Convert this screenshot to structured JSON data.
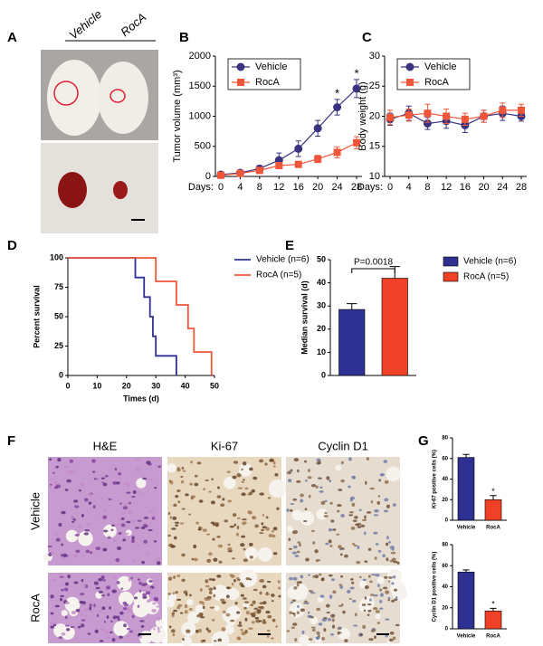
{
  "panel_labels": [
    "A",
    "B",
    "C",
    "D",
    "E",
    "F",
    "G"
  ],
  "panel_a": {
    "groups": [
      "Vehicle",
      "RocA"
    ]
  },
  "panel_f": {
    "columns": [
      "H&E",
      "Ki-67",
      "Cyclin D1"
    ],
    "rows": [
      "Vehicle",
      "RocA"
    ]
  },
  "chart_data": [
    {
      "type": "line",
      "ylabel": "Tumor volume (mm³)",
      "xlabel": "Days:",
      "x": [
        0,
        4,
        8,
        12,
        16,
        20,
        24,
        28
      ],
      "xlim": [
        0,
        28
      ],
      "xticks": [
        0,
        4,
        8,
        12,
        16,
        20,
        24,
        28
      ],
      "ylim": [
        0,
        2000
      ],
      "yticks": [
        0,
        500,
        1000,
        1500,
        2000
      ],
      "legend": "upper left",
      "series": [
        {
          "name": "Vehicle",
          "color": "#3a3480",
          "marker": "circle",
          "values": [
            30,
            60,
            130,
            270,
            460,
            800,
            1150,
            1460
          ],
          "errors": [
            20,
            30,
            50,
            120,
            130,
            130,
            130,
            150
          ],
          "point_labels": [
            null,
            null,
            null,
            null,
            null,
            null,
            "*",
            "*"
          ]
        },
        {
          "name": "RocA",
          "color": "#f0563a",
          "marker": "square",
          "values": [
            20,
            50,
            100,
            180,
            200,
            290,
            400,
            560
          ],
          "errors": [
            10,
            20,
            30,
            40,
            50,
            60,
            90,
            100
          ]
        }
      ]
    },
    {
      "type": "line",
      "ylabel": "Body weight (g)",
      "xlabel": "Days:",
      "x": [
        0,
        4,
        8,
        12,
        16,
        20,
        24,
        28
      ],
      "xlim": [
        0,
        28
      ],
      "xticks": [
        0,
        4,
        8,
        12,
        16,
        20,
        24,
        28
      ],
      "ylim": [
        10,
        30
      ],
      "yticks": [
        10,
        15,
        20,
        25,
        30
      ],
      "legend": "upper left",
      "series": [
        {
          "name": "Vehicle",
          "color": "#3a3480",
          "marker": "circle",
          "values": [
            19.5,
            20.5,
            18.8,
            19.2,
            18.5,
            20,
            20.5,
            20
          ],
          "errors": [
            1,
            1.2,
            1,
            1.2,
            1.2,
            1,
            1.2,
            0.8
          ]
        },
        {
          "name": "RocA",
          "color": "#f0563a",
          "marker": "square",
          "values": [
            19.8,
            20.2,
            20.5,
            20,
            19.5,
            20,
            21,
            21
          ],
          "errors": [
            1.2,
            1,
            1.5,
            1.2,
            1,
            1,
            1.2,
            1
          ]
        }
      ]
    },
    {
      "type": "step",
      "xlabel": "Times (d)",
      "ylabel": "Percent survival",
      "xlim": [
        0,
        50
      ],
      "xticks": [
        0,
        10,
        20,
        30,
        40,
        50
      ],
      "ylim": [
        0,
        100
      ],
      "yticks": [
        0,
        25,
        50,
        75,
        100
      ],
      "legend": "right",
      "series": [
        {
          "name": "Vehicle (n=6)",
          "color": "#2e3192",
          "x": [
            0,
            23,
            26,
            28,
            29,
            30,
            37
          ],
          "values": [
            100,
            83.3,
            66.7,
            50,
            33.3,
            16.7,
            0
          ]
        },
        {
          "name": "RocA (n=5)",
          "color": "#f0563a",
          "x": [
            0,
            30,
            37,
            41,
            43,
            49
          ],
          "values": [
            100,
            80,
            60,
            40,
            20,
            0
          ]
        }
      ]
    },
    {
      "type": "bar",
      "ylabel": "Median survival (d)",
      "ylim": [
        0,
        50
      ],
      "yticks": [
        0,
        10,
        20,
        30,
        40,
        50
      ],
      "legend": "right",
      "categories": [
        "Vehicle (n=6)",
        "RocA (n=5)"
      ],
      "values": [
        28.5,
        42
      ],
      "errors": [
        2.5,
        5
      ],
      "colors": [
        "#2e3192",
        "#ee4127"
      ],
      "annotation": "P=0.0018"
    },
    {
      "type": "bar",
      "ylabel": "Ki-67 positive cells (%)",
      "ylim": [
        0,
        80
      ],
      "yticks": [
        0,
        20,
        40,
        60,
        80
      ],
      "legend": "none",
      "categories": [
        "Vehicle",
        "RocA"
      ],
      "values": [
        61,
        20
      ],
      "errors": [
        3,
        4
      ],
      "colors": [
        "#2e3192",
        "#ee4127"
      ],
      "point_labels": [
        null,
        "*"
      ]
    },
    {
      "type": "bar",
      "ylabel": "Cyclin D1 positive cells (%)",
      "ylim": [
        0,
        80
      ],
      "yticks": [
        0,
        20,
        40,
        60,
        80
      ],
      "legend": "none",
      "categories": [
        "Vehicle",
        "RocA"
      ],
      "values": [
        54,
        17
      ],
      "errors": [
        2,
        2.5
      ],
      "colors": [
        "#2e3192",
        "#ee4127"
      ],
      "point_labels": [
        null,
        "*"
      ]
    }
  ]
}
